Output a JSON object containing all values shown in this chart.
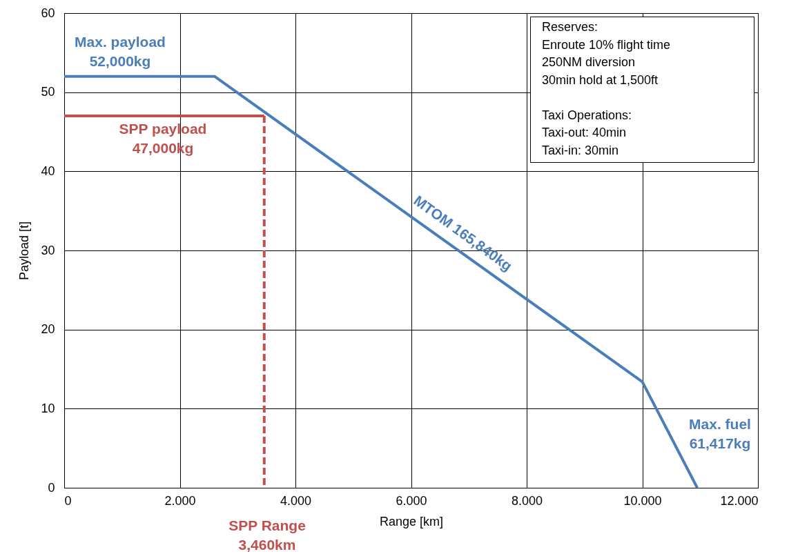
{
  "chart_data": {
    "type": "line",
    "xlabel": "Range [km]",
    "ylabel": "Payload [t]",
    "xlim": [
      0,
      12000
    ],
    "ylim": [
      0,
      60
    ],
    "xticks": [
      0,
      {
        "value": 2000,
        "label": "2.000"
      },
      {
        "value": 4000,
        "label": "4.000"
      },
      {
        "value": 6000,
        "label": "6.000"
      },
      {
        "value": 8000,
        "label": "8.000"
      },
      {
        "value": 10000,
        "label": "10.000"
      },
      {
        "value": 12000,
        "label": "12.000"
      }
    ],
    "yticks": [
      0,
      10,
      20,
      30,
      40,
      50,
      60
    ],
    "grid": true,
    "series": [
      {
        "color": "#4a7ebb",
        "x": [
          0,
          2600,
          10000,
          10950
        ],
        "values": [
          52,
          52,
          13.4,
          0
        ]
      },
      {
        "color": "#c0504d",
        "x": [
          0,
          3460
        ],
        "values": [
          47,
          47
        ]
      },
      {
        "color": "#c0504d",
        "x": [
          3460,
          3460
        ],
        "values": [
          47,
          0
        ],
        "line_style": "dashed"
      }
    ],
    "annotations": [
      "Max. payload\n52,000kg",
      "SPP payload\n47,000kg",
      "MTOM 165,840kg",
      "Max. fuel\n61,417kg",
      "SPP Range\n3,460km",
      "Reserves:\nEnroute 10% flight time\n250NM diversion\n30min hold at 1,500ft\n\nTaxi Operations:\nTaxi-out: 40min\nTaxi-in: 30min"
    ]
  }
}
